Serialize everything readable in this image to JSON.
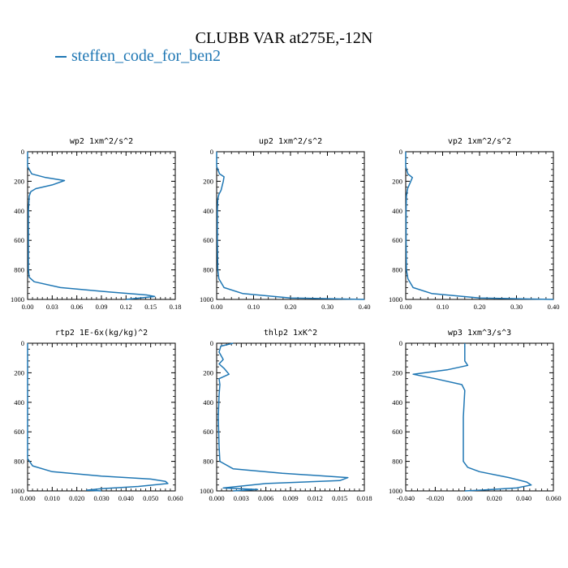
{
  "figure": {
    "title": "CLUBB VAR at275E,-12N",
    "legend": "steffen_code_for_ben2",
    "line_color": "#1f77b4"
  },
  "chart_data": [
    {
      "type": "line",
      "title": "wp2  1xm^2/s^2",
      "xlim": [
        0,
        0.18
      ],
      "ylim": [
        1000,
        0
      ],
      "x_ticks": [
        "0.00",
        "0.03",
        "0.06",
        "0.09",
        "0.12",
        "0.15",
        "0.18"
      ],
      "y_ticks": [
        "0",
        "200",
        "400",
        "600",
        "800",
        "1000"
      ],
      "series": [
        {
          "x": [
            0.0,
            0.0,
            0.005,
            0.022,
            0.045,
            0.03,
            0.01,
            0.004,
            0.002,
            0.001,
            0.001,
            0.001,
            0.002,
            0.008,
            0.04,
            0.1,
            0.145,
            0.155,
            0.12
          ],
          "y": [
            0,
            100,
            150,
            175,
            195,
            225,
            250,
            270,
            300,
            400,
            600,
            800,
            850,
            880,
            920,
            950,
            970,
            980,
            1000
          ]
        }
      ]
    },
    {
      "type": "line",
      "title": "up2  1xm^2/s^2",
      "xlim": [
        0,
        0.4
      ],
      "ylim": [
        1000,
        0
      ],
      "x_ticks": [
        "0.00",
        "0.10",
        "0.20",
        "0.30",
        "0.40"
      ],
      "y_ticks": [
        "0",
        "200",
        "400",
        "600",
        "800",
        "1000"
      ],
      "series": [
        {
          "x": [
            0.0,
            0.0,
            0.008,
            0.02,
            0.018,
            0.015,
            0.012,
            0.006,
            0.003,
            0.002,
            0.002,
            0.003,
            0.006,
            0.02,
            0.07,
            0.2,
            0.4
          ],
          "y": [
            0,
            100,
            150,
            170,
            200,
            230,
            260,
            290,
            320,
            400,
            600,
            800,
            860,
            920,
            960,
            990,
            1000
          ]
        }
      ]
    },
    {
      "type": "line",
      "title": "vp2  1xm^2/s^2",
      "xlim": [
        0,
        0.4
      ],
      "ylim": [
        1000,
        0
      ],
      "x_ticks": [
        "0.00",
        "0.10",
        "0.20",
        "0.30",
        "0.40"
      ],
      "y_ticks": [
        "0",
        "200",
        "400",
        "600",
        "800",
        "1000"
      ],
      "series": [
        {
          "x": [
            0.0,
            0.0,
            0.006,
            0.018,
            0.012,
            0.005,
            0.002,
            0.001,
            0.001,
            0.002,
            0.006,
            0.02,
            0.07,
            0.2,
            0.4
          ],
          "y": [
            0,
            100,
            150,
            175,
            210,
            250,
            300,
            400,
            600,
            800,
            860,
            920,
            960,
            990,
            1000
          ]
        }
      ]
    },
    {
      "type": "line",
      "title": "rtp2  1E-6x(kg/kg)^2",
      "xlim": [
        0,
        0.06
      ],
      "ylim": [
        1000,
        0
      ],
      "x_ticks": [
        "0.000",
        "0.010",
        "0.020",
        "0.030",
        "0.040",
        "0.050",
        "0.060"
      ],
      "y_ticks": [
        "0",
        "200",
        "400",
        "600",
        "800",
        "1000"
      ],
      "series": [
        {
          "x": [
            0.0,
            0.0,
            0.0,
            0.002,
            0.01,
            0.03,
            0.05,
            0.056,
            0.057,
            0.045,
            0.03,
            0.024,
            0.03
          ],
          "y": [
            0,
            200,
            780,
            830,
            870,
            900,
            920,
            935,
            950,
            970,
            985,
            995,
            1000
          ]
        }
      ]
    },
    {
      "type": "line",
      "title": "thlp2  1xK^2",
      "xlim": [
        0,
        0.018
      ],
      "ylim": [
        1000,
        0
      ],
      "x_ticks": [
        "0.000",
        "0.003",
        "0.006",
        "0.009",
        "0.012",
        "0.015",
        "0.018"
      ],
      "y_ticks": [
        "0",
        "200",
        "400",
        "600",
        "800",
        "1000"
      ],
      "series": [
        {
          "x": [
            0.002,
            0.0005,
            0.0003,
            0.0008,
            0.0003,
            0.0009,
            0.0015,
            0.0003,
            0.0004,
            0.0003,
            0.0002,
            0.0003,
            0.0004,
            0.002,
            0.008,
            0.016,
            0.015,
            0.006,
            0.0008,
            0.005,
            0.002
          ],
          "y": [
            0,
            20,
            60,
            110,
            140,
            170,
            210,
            240,
            280,
            350,
            500,
            700,
            800,
            850,
            880,
            910,
            930,
            950,
            980,
            990,
            1000
          ]
        }
      ]
    },
    {
      "type": "line",
      "title": "wp3  1xm^3/s^3",
      "xlim": [
        -0.04,
        0.06
      ],
      "ylim": [
        1000,
        0
      ],
      "x_ticks": [
        "-0.040",
        "-0.020",
        "0.000",
        "0.020",
        "0.040",
        "0.060"
      ],
      "y_ticks": [
        "0",
        "200",
        "400",
        "600",
        "800",
        "1000"
      ],
      "series": [
        {
          "x": [
            0.0,
            0.0,
            0.002,
            -0.012,
            -0.035,
            -0.02,
            -0.002,
            0.0,
            -0.001,
            -0.001,
            0.002,
            0.01,
            0.03,
            0.042,
            0.045,
            0.035,
            0.01,
            0.0
          ],
          "y": [
            0,
            120,
            150,
            180,
            210,
            240,
            280,
            320,
            500,
            800,
            840,
            870,
            910,
            940,
            960,
            980,
            995,
            1000
          ]
        }
      ]
    }
  ]
}
